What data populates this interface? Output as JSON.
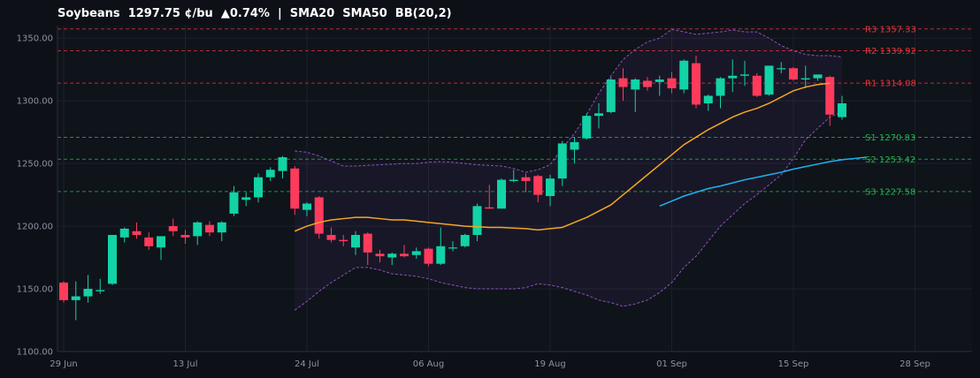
{
  "chart_data": {
    "type": "candlestick",
    "title": "Soybeans  1297.75 ¢/bu  ▲0.74%  |  SMA20  SMA50  BB(20,2)",
    "ylim": [
      1100,
      1360
    ],
    "yticks": [
      1100,
      1150,
      1200,
      1250,
      1300,
      1350
    ],
    "ytick_labels": [
      "1100.00",
      "1150.00",
      "1200.00",
      "1250.00",
      "1300.00",
      "1350.00"
    ],
    "xlim": [
      0,
      75
    ],
    "xticks": [
      {
        "x": 0,
        "label": "29 Jun"
      },
      {
        "x": 10,
        "label": "13 Jul"
      },
      {
        "x": 20,
        "label": "24 Jul"
      },
      {
        "x": 30,
        "label": "06 Aug"
      },
      {
        "x": 40,
        "label": "19 Aug"
      },
      {
        "x": 50,
        "label": "01 Sep"
      },
      {
        "x": 60,
        "label": "15 Sep"
      },
      {
        "x": 70,
        "label": "28 Sep"
      }
    ],
    "colors": {
      "up": "#11d3a6",
      "down": "#ff3b5c",
      "sma20": "#f5a623",
      "sma50": "#1fb3f0",
      "bb": "#9b59d0",
      "resistance": "#e0353b",
      "support": "#22b14c",
      "grid": "#1c212b",
      "background": "#0d1017"
    },
    "candles": [
      [
        1155,
        1156,
        1139,
        1141
      ],
      [
        1141,
        1156,
        1125,
        1144
      ],
      [
        1144,
        1161,
        1139,
        1150
      ],
      [
        1148,
        1158,
        1146,
        1149
      ],
      [
        1154,
        1193,
        1153,
        1193
      ],
      [
        1191,
        1199,
        1187,
        1198
      ],
      [
        1196,
        1203,
        1190,
        1193
      ],
      [
        1191,
        1195,
        1181,
        1184
      ],
      [
        1183,
        1192,
        1173,
        1192
      ],
      [
        1200,
        1206,
        1192,
        1196
      ],
      [
        1193,
        1197,
        1186,
        1191
      ],
      [
        1192,
        1204,
        1185,
        1203
      ],
      [
        1201,
        1204,
        1192,
        1195
      ],
      [
        1195,
        1204,
        1188,
        1203
      ],
      [
        1210,
        1232,
        1208,
        1227
      ],
      [
        1221,
        1227,
        1216,
        1223
      ],
      [
        1223,
        1242,
        1219,
        1239
      ],
      [
        1239,
        1247,
        1236,
        1245
      ],
      [
        1244,
        1256,
        1238,
        1255
      ],
      [
        1246,
        1248,
        1209,
        1214
      ],
      [
        1213,
        1219,
        1208,
        1218
      ],
      [
        1223,
        1224,
        1190,
        1194
      ],
      [
        1193,
        1199,
        1187,
        1189
      ],
      [
        1189,
        1193,
        1184,
        1188
      ],
      [
        1183,
        1196,
        1177,
        1193
      ],
      [
        1194,
        1195,
        1169,
        1179
      ],
      [
        1178,
        1181,
        1171,
        1176
      ],
      [
        1175,
        1179,
        1169,
        1178
      ],
      [
        1178,
        1185,
        1175,
        1176
      ],
      [
        1177,
        1183,
        1174,
        1180
      ],
      [
        1182,
        1183,
        1168,
        1170
      ],
      [
        1170,
        1199,
        1169,
        1184
      ],
      [
        1183,
        1188,
        1180,
        1183
      ],
      [
        1184,
        1194,
        1183,
        1193
      ],
      [
        1193,
        1218,
        1188,
        1216
      ],
      [
        1215,
        1233,
        1214,
        1214
      ],
      [
        1214,
        1238,
        1214,
        1237
      ],
      [
        1236,
        1245,
        1235,
        1237
      ],
      [
        1239,
        1242,
        1227,
        1236
      ],
      [
        1240,
        1241,
        1219,
        1225
      ],
      [
        1224,
        1241,
        1216,
        1238
      ],
      [
        1238,
        1268,
        1232,
        1266
      ],
      [
        1261,
        1271,
        1250,
        1267
      ],
      [
        1270,
        1290,
        1269,
        1288
      ],
      [
        1288,
        1298,
        1278,
        1290
      ],
      [
        1291,
        1319,
        1290,
        1317
      ],
      [
        1318,
        1326,
        1300,
        1311
      ],
      [
        1309,
        1318,
        1291,
        1317
      ],
      [
        1316,
        1319,
        1308,
        1311
      ],
      [
        1315,
        1320,
        1304,
        1317
      ],
      [
        1318,
        1323,
        1306,
        1310
      ],
      [
        1309,
        1333,
        1306,
        1332
      ],
      [
        1330,
        1336,
        1294,
        1297
      ],
      [
        1298,
        1305,
        1292,
        1304
      ],
      [
        1304,
        1319,
        1294,
        1318
      ],
      [
        1318,
        1333,
        1307,
        1320
      ],
      [
        1320,
        1332,
        1312,
        1321
      ],
      [
        1320,
        1322,
        1303,
        1304
      ],
      [
        1305,
        1328,
        1304,
        1328
      ],
      [
        1326,
        1331,
        1322,
        1326
      ],
      [
        1326,
        1327,
        1316,
        1317
      ],
      [
        1317,
        1328,
        1310,
        1318
      ],
      [
        1318,
        1320,
        1316,
        1321
      ],
      [
        1319,
        1320,
        1280,
        1289
      ],
      [
        1287,
        1304,
        1285,
        1298
      ]
    ],
    "series": [
      {
        "name": "SMA20",
        "start": 19,
        "values": [
          1196,
          1200,
          1203,
          1205,
          1206,
          1207,
          1207,
          1206,
          1205,
          1205,
          1204,
          1203,
          1202,
          1201,
          1200,
          1199.5,
          1199,
          1199,
          1198.5,
          1198,
          1197,
          1198,
          1199,
          1203,
          1207,
          1212,
          1217,
          1225,
          1233,
          1241,
          1249,
          1257,
          1265,
          1271,
          1277,
          1282,
          1287,
          1291,
          1294,
          1298,
          1303,
          1308,
          1311,
          1313,
          1314
        ]
      },
      {
        "name": "SMA50",
        "start": 49,
        "values": [
          1216,
          1220,
          1224,
          1227,
          1230,
          1232,
          1234.5,
          1237,
          1239,
          1241,
          1243,
          1245.5,
          1247.5,
          1249.5,
          1251.5,
          1253,
          1254,
          1255
        ]
      }
    ],
    "bollinger": {
      "start": 19,
      "upper": [
        1260,
        1259,
        1256,
        1252,
        1248,
        1248,
        1248.5,
        1249,
        1249.5,
        1250,
        1250,
        1251,
        1251.5,
        1251,
        1250,
        1249,
        1248.5,
        1248,
        1246,
        1243,
        1245,
        1249,
        1262,
        1274,
        1289,
        1306,
        1320,
        1333,
        1341,
        1347,
        1350,
        1357,
        1355,
        1353,
        1354,
        1355,
        1356.5,
        1355,
        1355,
        1350,
        1344,
        1340,
        1337,
        1336,
        1336,
        1335
      ],
      "lower": [
        1133,
        1140,
        1148,
        1155,
        1161,
        1167,
        1167,
        1165,
        1162,
        1161,
        1160,
        1158,
        1155,
        1153,
        1151,
        1150,
        1150,
        1150,
        1150,
        1151,
        1154,
        1153,
        1151,
        1148,
        1145,
        1141,
        1139,
        1136,
        1138,
        1141,
        1147,
        1155,
        1167,
        1176,
        1188,
        1200,
        1209,
        1218,
        1225,
        1233,
        1241,
        1254,
        1269,
        1278,
        1287,
        1291
      ]
    },
    "levels": [
      {
        "label": "R3 1357.33",
        "value": 1357.33,
        "kind": "resistance"
      },
      {
        "label": "R2 1339.92",
        "value": 1339.92,
        "kind": "resistance"
      },
      {
        "label": "R1 1314.08",
        "value": 1314.08,
        "kind": "resistance"
      },
      {
        "label": "S1 1270.83",
        "value": 1270.83,
        "kind": "support"
      },
      {
        "label": "S2 1253.42",
        "value": 1253.42,
        "kind": "support"
      },
      {
        "label": "S3 1227.58",
        "value": 1227.58,
        "kind": "support"
      }
    ]
  }
}
